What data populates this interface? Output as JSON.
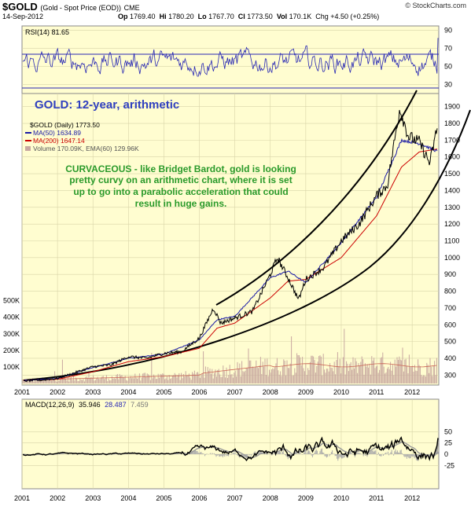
{
  "header": {
    "symbol": "$GOLD",
    "symbol_desc": "(Gold - Spot Price (EOD))",
    "exchange": "CME",
    "date": "14-Sep-2012",
    "op_label": "Op",
    "op": "1769.40",
    "hi_label": "Hi",
    "hi": "1780.20",
    "lo_label": "Lo",
    "lo": "1767.70",
    "cl_label": "Cl",
    "cl": "1773.50",
    "vol_label": "Vol",
    "vol": "170.1K",
    "chg": "Chg +4.50 (+0.25%)",
    "brand": "© StockCharts.com"
  },
  "rsi": {
    "label": "RSI(14) 81.65",
    "ticks": [
      "90",
      "70",
      "50",
      "30"
    ]
  },
  "main": {
    "title": "GOLD: 12-year, arithmetic",
    "legend": [
      "$GOLD (Daily) 1773.50",
      "MA(50) 1634.89",
      "MA(200) 1647.14",
      "Volume 170.09K, EMA(60) 129.96K"
    ],
    "annotation": [
      "CURVACEOUS - like Bridget Bardot, gold is looking",
      "pretty curvy on an arithmetic chart, where it is set",
      "up to go into a parabolic acceleration that could",
      "result in huge gains."
    ],
    "price_ticks": [
      "1900",
      "1800",
      "1700",
      "1600",
      "1500",
      "1400",
      "1300",
      "1200",
      "1100",
      "1000",
      "900",
      "800",
      "700",
      "600",
      "500",
      "400",
      "300"
    ],
    "volume_ticks": [
      "500K",
      "400K",
      "300K",
      "200K",
      "100K"
    ]
  },
  "macd": {
    "label_prefix": "MACD(12,26,9)",
    "macd_val": "35.946",
    "signal_val": "28.487",
    "hist_val": "7.459",
    "ticks": [
      "50",
      "25",
      "0",
      "-25"
    ]
  },
  "x_axis": [
    "2001",
    "2002",
    "2003",
    "2004",
    "2005",
    "2006",
    "2007",
    "2008",
    "2009",
    "2010",
    "2011",
    "2012"
  ],
  "colors": {
    "panel_bg": "#fffdd0",
    "grid": "#d8d4a8",
    "price": "#000000",
    "ma50": "#1a1aa6",
    "ma200": "#cc0000",
    "volume": "#c8a8a0",
    "rsi_line": "#2828b4",
    "title_blue": "#2f3fbf",
    "annotation_green": "#2a9a2a"
  },
  "chart_data": {
    "type": "line",
    "title": "GOLD: 12-year, arithmetic",
    "x_range": [
      2001,
      2012.75
    ],
    "y_range": [
      250,
      1950
    ],
    "series": [
      {
        "name": "$GOLD (Daily)",
        "x": [
          2001.0,
          2001.5,
          2002.0,
          2002.5,
          2003.0,
          2003.5,
          2004.0,
          2004.5,
          2005.0,
          2005.5,
          2006.0,
          2006.4,
          2006.6,
          2007.0,
          2007.5,
          2008.0,
          2008.2,
          2008.5,
          2008.8,
          2009.0,
          2009.5,
          2010.0,
          2010.5,
          2011.0,
          2011.3,
          2011.65,
          2011.9,
          2012.2,
          2012.5,
          2012.7
        ],
        "values": [
          265,
          270,
          280,
          315,
          350,
          360,
          410,
          400,
          430,
          440,
          520,
          700,
          610,
          640,
          680,
          900,
          1000,
          880,
          750,
          870,
          940,
          1100,
          1200,
          1370,
          1430,
          1890,
          1720,
          1690,
          1560,
          1773
        ]
      },
      {
        "name": "MA(50)",
        "x": [
          2001.0,
          2002.0,
          2003.0,
          2004.0,
          2005.0,
          2006.0,
          2006.5,
          2007.0,
          2008.0,
          2008.5,
          2009.0,
          2010.0,
          2011.0,
          2011.7,
          2012.2,
          2012.7
        ],
        "values": [
          268,
          280,
          345,
          400,
          425,
          510,
          630,
          650,
          880,
          920,
          850,
          1090,
          1360,
          1700,
          1680,
          1634.89
        ]
      },
      {
        "name": "MA(200)",
        "x": [
          2001.0,
          2002.0,
          2003.0,
          2004.0,
          2005.0,
          2006.0,
          2006.5,
          2007.0,
          2008.0,
          2008.5,
          2009.0,
          2010.0,
          2011.0,
          2011.7,
          2012.2,
          2012.7
        ],
        "values": [
          270,
          275,
          320,
          380,
          410,
          460,
          580,
          610,
          760,
          860,
          870,
          1000,
          1250,
          1540,
          1630,
          1647.14
        ]
      }
    ],
    "annotations": [
      "CURVACEOUS - like Bridget Bardot, gold is looking",
      "pretty curvy on an arithmetic chart, where it is set",
      "up to go into a parabolic acceleration that could",
      "result in huge gains."
    ]
  }
}
